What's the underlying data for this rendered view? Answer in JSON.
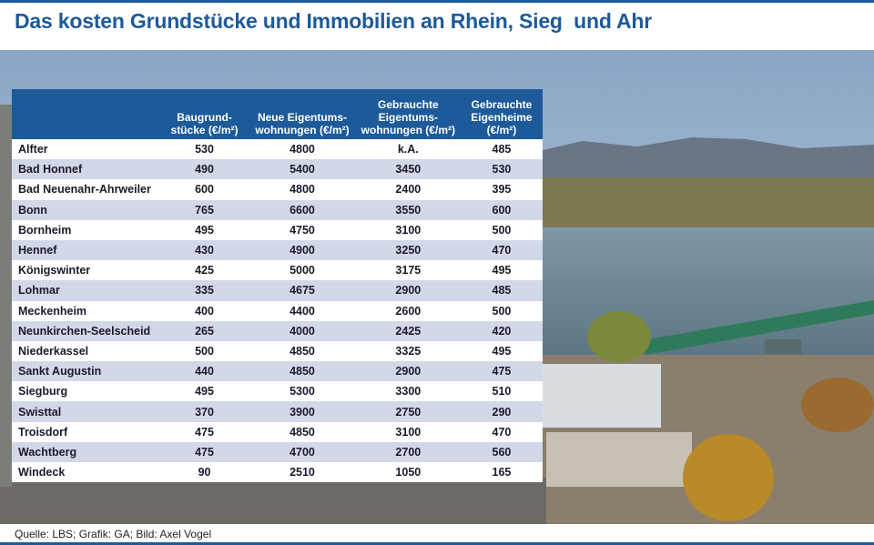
{
  "header": {
    "title": "Das kosten Grundstücke und Immobilien an Rhein, Sieg  und Ahr"
  },
  "table": {
    "headers": [
      "",
      "Baugrund-\nstücke (€/m²)",
      "Neue Eigentums-\nwohnungen (€/m²)",
      "Gebrauchte\nEigentums-\nwohnungen (€/m²)",
      "Gebrauchte\nEigenheime (€/m²)"
    ],
    "rows": [
      [
        "Alfter",
        530,
        4800,
        "k.A.",
        485
      ],
      [
        "Bad Honnef",
        490,
        5400,
        3450,
        530
      ],
      [
        "Bad Neuenahr-Ahrweiler",
        600,
        4800,
        2400,
        395
      ],
      [
        "Bonn",
        765,
        6600,
        3550,
        600
      ],
      [
        "Bornheim",
        495,
        4750,
        3100,
        500
      ],
      [
        "Hennef",
        430,
        4900,
        3250,
        470
      ],
      [
        "Königswinter",
        425,
        5000,
        3175,
        495
      ],
      [
        "Lohmar",
        335,
        4675,
        2900,
        485
      ],
      [
        "Meckenheim",
        400,
        4400,
        2600,
        500
      ],
      [
        "Neunkirchen-Seelscheid",
        265,
        4000,
        2425,
        420
      ],
      [
        "Niederkassel",
        500,
        4850,
        3325,
        495
      ],
      [
        "Sankt Augustin",
        440,
        4850,
        2900,
        475
      ],
      [
        "Siegburg",
        495,
        5300,
        3300,
        510
      ],
      [
        "Swisttal",
        370,
        3900,
        2750,
        290
      ],
      [
        "Troisdorf",
        475,
        4850,
        3100,
        470
      ],
      [
        "Wachtberg",
        475,
        4700,
        2700,
        560
      ],
      [
        "Windeck",
        90,
        2510,
        1050,
        165
      ]
    ]
  },
  "footer": {
    "source": "Quelle: LBS; Grafik: GA; Bild: Axel Vogel"
  }
}
